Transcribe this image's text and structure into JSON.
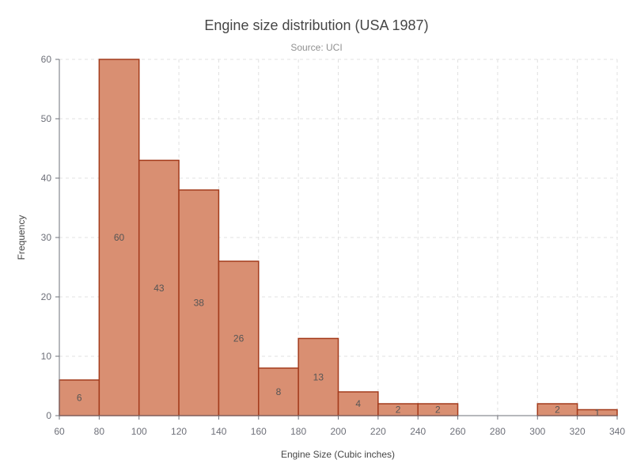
{
  "chart_data": {
    "type": "bar",
    "title": "Engine size distribution (USA 1987)",
    "subtitle": "Source: UCI",
    "xlabel": "Engine Size (Cubic inches)",
    "ylabel": "Frequency",
    "xlim": [
      60,
      340
    ],
    "ylim": [
      0,
      60
    ],
    "x_ticks": [
      60,
      80,
      100,
      120,
      140,
      160,
      180,
      200,
      220,
      240,
      260,
      280,
      300,
      320,
      340
    ],
    "y_ticks": [
      0,
      10,
      20,
      30,
      40,
      50,
      60
    ],
    "bins": [
      {
        "start": 60,
        "end": 80,
        "value": 6
      },
      {
        "start": 80,
        "end": 100,
        "value": 60
      },
      {
        "start": 100,
        "end": 120,
        "value": 43
      },
      {
        "start": 120,
        "end": 140,
        "value": 38
      },
      {
        "start": 140,
        "end": 160,
        "value": 26
      },
      {
        "start": 160,
        "end": 180,
        "value": 8
      },
      {
        "start": 180,
        "end": 200,
        "value": 13
      },
      {
        "start": 200,
        "end": 220,
        "value": 4
      },
      {
        "start": 220,
        "end": 240,
        "value": 2
      },
      {
        "start": 240,
        "end": 260,
        "value": 2
      },
      {
        "start": 300,
        "end": 320,
        "value": 2
      },
      {
        "start": 320,
        "end": 340,
        "value": 1
      }
    ],
    "bar_fill": "#d98f72",
    "bar_stroke": "#a33b1c",
    "grid": true
  }
}
